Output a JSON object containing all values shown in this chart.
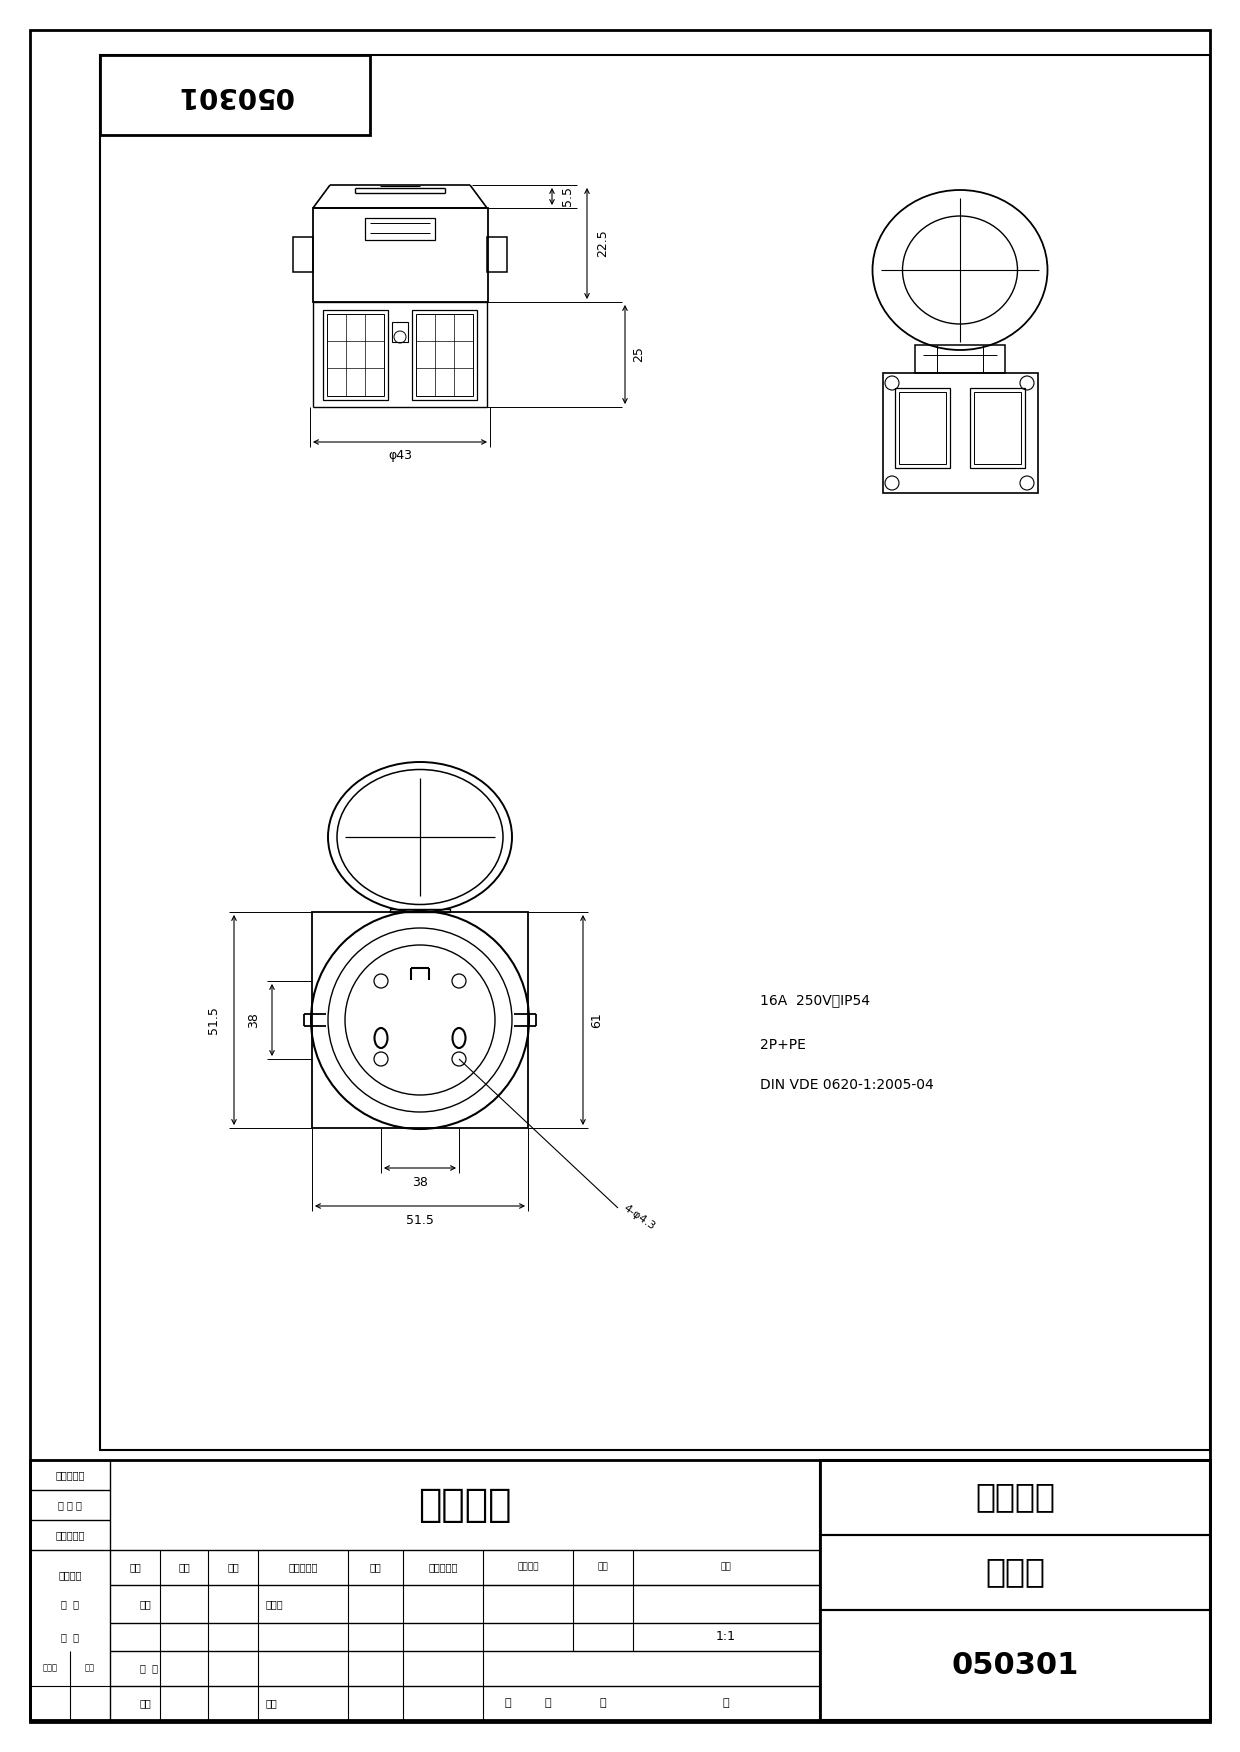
{
  "bg_color": "#ffffff",
  "line_color": "#000000",
  "drawing_title": "德式插座",
  "company": "神创电气",
  "view_name": "外形图",
  "part_number": "050301",
  "title_number": "050301",
  "spec1": "16A  250V～IP54",
  "spec2": "2P+PE",
  "spec3": "DIN VDE 0620-1:2005-04",
  "dim_phi43": "φ43",
  "dim_5_5": "5.5",
  "dim_22_5": "22.5",
  "dim_25": "25",
  "dim_38h": "38",
  "dim_51_5h": "51.5",
  "dim_38v": "38",
  "dim_51_5v": "51.5",
  "dim_61": "61",
  "dim_holes": "4-φ4.3",
  "label_biao_ji": "标记",
  "label_chu_shu": "处数",
  "label_fen_qu": "分区",
  "label_geng_gai": "更改文件号",
  "label_qian_ming": "签名",
  "label_nian_yue_ri": "年、月、日",
  "label_jie_tong_yong": "借（通）用",
  "label_jian_dang": "件 登 记",
  "label_jiu_di_tu": "旧底图总号",
  "label_di_tu": "底图总号",
  "label_qian_zi": "签  字",
  "label_she_ji": "设计",
  "label_biao_zhun_hua": "标准化",
  "label_ri_qi": "日  期",
  "label_dang_an": "档案员",
  "label_ri": "日期",
  "label_shen_he": "审  核",
  "label_gong_yi": "工艺",
  "label_pi_zhun": "批准",
  "label_jie_duan": "阶段标记",
  "label_zhong_liang": "重量",
  "label_bi_li": "比例",
  "label_bi_li_val": "1:1",
  "label_gong": "共",
  "label_zhang": "张",
  "label_di": "第",
  "label_zhang2": "张"
}
